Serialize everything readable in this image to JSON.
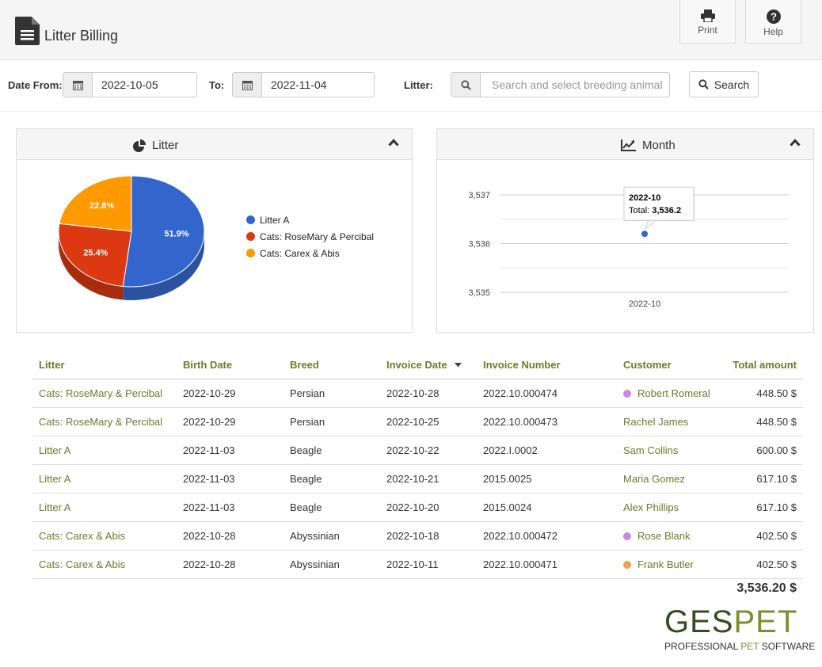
{
  "app": {
    "title": "Litter Billing",
    "toolbar": {
      "print_label": "Print",
      "help_label": "Help"
    }
  },
  "filters": {
    "date_from_label": "Date From:",
    "date_from_value": "2022-10-05",
    "to_label": "To:",
    "to_value": "2022-11-04",
    "litter_label": "Litter:",
    "litter_placeholder": "Search and select breeding animal",
    "search_label": "Search"
  },
  "panels": {
    "litter_title": "Litter",
    "month_title": "Month"
  },
  "chart_data": [
    {
      "type": "pie",
      "title": "Litter",
      "labels": [
        "Litter A",
        "Cats: RoseMary & Percibal",
        "Cats: Carex & Abis"
      ],
      "values": [
        51.9,
        25.4,
        22.8
      ],
      "value_labels": [
        "51.9%",
        "25.4%",
        "22.8%"
      ],
      "colors": [
        "#3366cc",
        "#dc3912",
        "#ff9900"
      ],
      "legend_placement": "right"
    },
    {
      "type": "line",
      "title": "Month",
      "x": [
        "2022-10"
      ],
      "series": [
        {
          "values": [
            3536.2
          ]
        }
      ],
      "y_ticks": [
        "3,537",
        "3,536",
        "3,535"
      ],
      "ylim": [
        3535,
        3537
      ],
      "grid": true,
      "tooltip": {
        "title": "2022-10",
        "label": "Total:",
        "value": "3,536.2"
      }
    }
  ],
  "table": {
    "headers": [
      "Litter",
      "Birth Date",
      "Breed",
      "Invoice Date",
      "Invoice Number",
      "Customer",
      "Total amount"
    ],
    "rows": [
      {
        "litter": "Cats: RoseMary & Percibal",
        "birth": "2022-10-29",
        "breed": "Persian",
        "invoice_date": "2022-10-28",
        "invoice_number": "2022.10.000474",
        "customer": "Robert Romeral",
        "dot": "#cc88dd",
        "total": "448.50 $"
      },
      {
        "litter": "Cats: RoseMary & Percibal",
        "birth": "2022-10-29",
        "breed": "Persian",
        "invoice_date": "2022-10-25",
        "invoice_number": "2022.10.000473",
        "customer": "Rachel James",
        "dot": "",
        "total": "448.50 $"
      },
      {
        "litter": "Litter A",
        "birth": "2022-11-03",
        "breed": "Beagle",
        "invoice_date": "2022-10-22",
        "invoice_number": "2022.I.0002",
        "customer": "Sam Collins",
        "dot": "",
        "total": "600.00 $"
      },
      {
        "litter": "Litter A",
        "birth": "2022-11-03",
        "breed": "Beagle",
        "invoice_date": "2022-10-21",
        "invoice_number": "2015.0025",
        "customer": "Maria Gomez",
        "dot": "",
        "total": "617.10 $"
      },
      {
        "litter": "Litter A",
        "birth": "2022-11-03",
        "breed": "Beagle",
        "invoice_date": "2022-10-20",
        "invoice_number": "2015.0024",
        "customer": "Alex Phillips",
        "dot": "",
        "total": "617.10 $"
      },
      {
        "litter": "Cats: Carex & Abis",
        "birth": "2022-10-28",
        "breed": "Abyssinian",
        "invoice_date": "2022-10-18",
        "invoice_number": "2022.10.000472",
        "customer": "Rose Blank",
        "dot": "#cc88dd",
        "total": "402.50 $"
      },
      {
        "litter": "Cats: Carex & Abis",
        "birth": "2022-10-28",
        "breed": "Abyssinian",
        "invoice_date": "2022-10-11",
        "invoice_number": "2022.10.000471",
        "customer": "Frank Butler",
        "dot": "#f0a050",
        "total": "402.50 $"
      }
    ],
    "grand_total": "3,536.20 $"
  },
  "brand": {
    "logo_ges": "GES",
    "logo_pet": "PET",
    "tagline_a": "PROFESSIONAL ",
    "tagline_b": "PET",
    "tagline_c": " SOFTWARE",
    "colors": {
      "primary": "#3a4a1f",
      "accent": "#7b8f2d"
    }
  }
}
